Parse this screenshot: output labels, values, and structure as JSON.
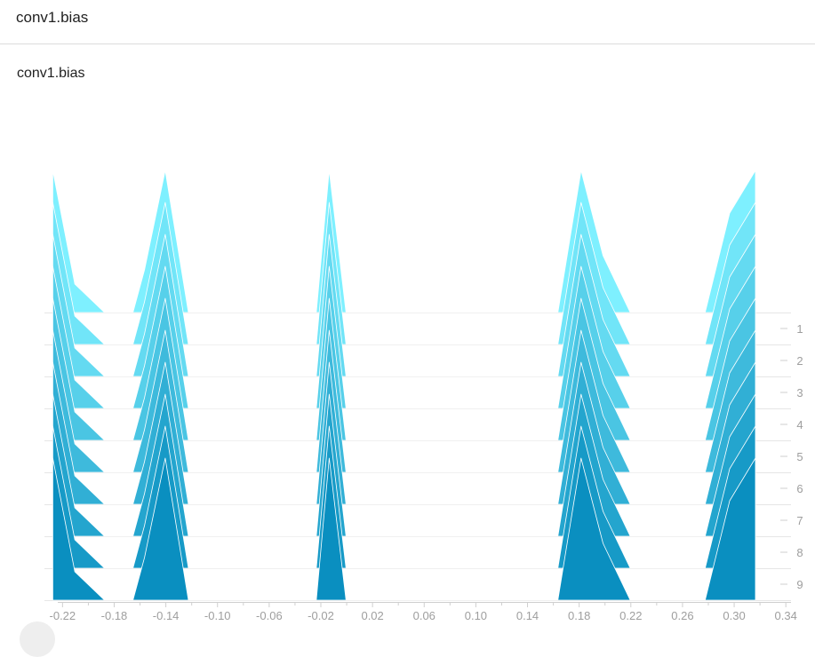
{
  "header": {
    "title": "conv1.bias"
  },
  "card": {
    "title": "conv1.bias"
  },
  "colors": {
    "front": "#0a8fc0",
    "back": "#7ef0ff",
    "grid": "#e6e6e6",
    "axis": "#cfcfcf",
    "tick_text": "#9e9e9e"
  },
  "chart_data": {
    "type": "histogram",
    "mode": "offset",
    "title": "conv1.bias",
    "x_ticks": [
      "-0.22",
      "-0.18",
      "-0.14",
      "-0.10",
      "-0.06",
      "-0.02",
      "0.02",
      "0.06",
      "0.10",
      "0.14",
      "0.18",
      "0.22",
      "0.26",
      "0.30",
      "0.34"
    ],
    "x_tick_values": [
      -0.22,
      -0.18,
      -0.14,
      -0.1,
      -0.06,
      -0.02,
      0.02,
      0.06,
      0.1,
      0.14,
      0.18,
      0.22,
      0.26,
      0.3,
      0.34
    ],
    "xlim": [
      -0.234,
      0.344
    ],
    "steps": [
      0,
      1,
      2,
      3,
      4,
      5,
      6,
      7,
      8,
      9
    ],
    "step_labels": [
      "1",
      "2",
      "3",
      "4",
      "5",
      "6",
      "7",
      "8",
      "9"
    ],
    "histogram_points_x": [
      -0.2275,
      -0.2105,
      -0.1875,
      -0.1655,
      -0.1565,
      -0.1405,
      -0.1225,
      -0.0375,
      -0.0235,
      -0.0135,
      -0.0005,
      0.1635,
      0.1815,
      0.1985,
      0.2195,
      0.2775,
      0.2965,
      0.3165
    ],
    "histogram_points_count": [
      1.0,
      0.2,
      0,
      0,
      0.3,
      1.0,
      0,
      0,
      0,
      1.0,
      0,
      0,
      1.0,
      0.4,
      0,
      0,
      0.7,
      1.0
    ],
    "peak_scale": 0.9
  }
}
